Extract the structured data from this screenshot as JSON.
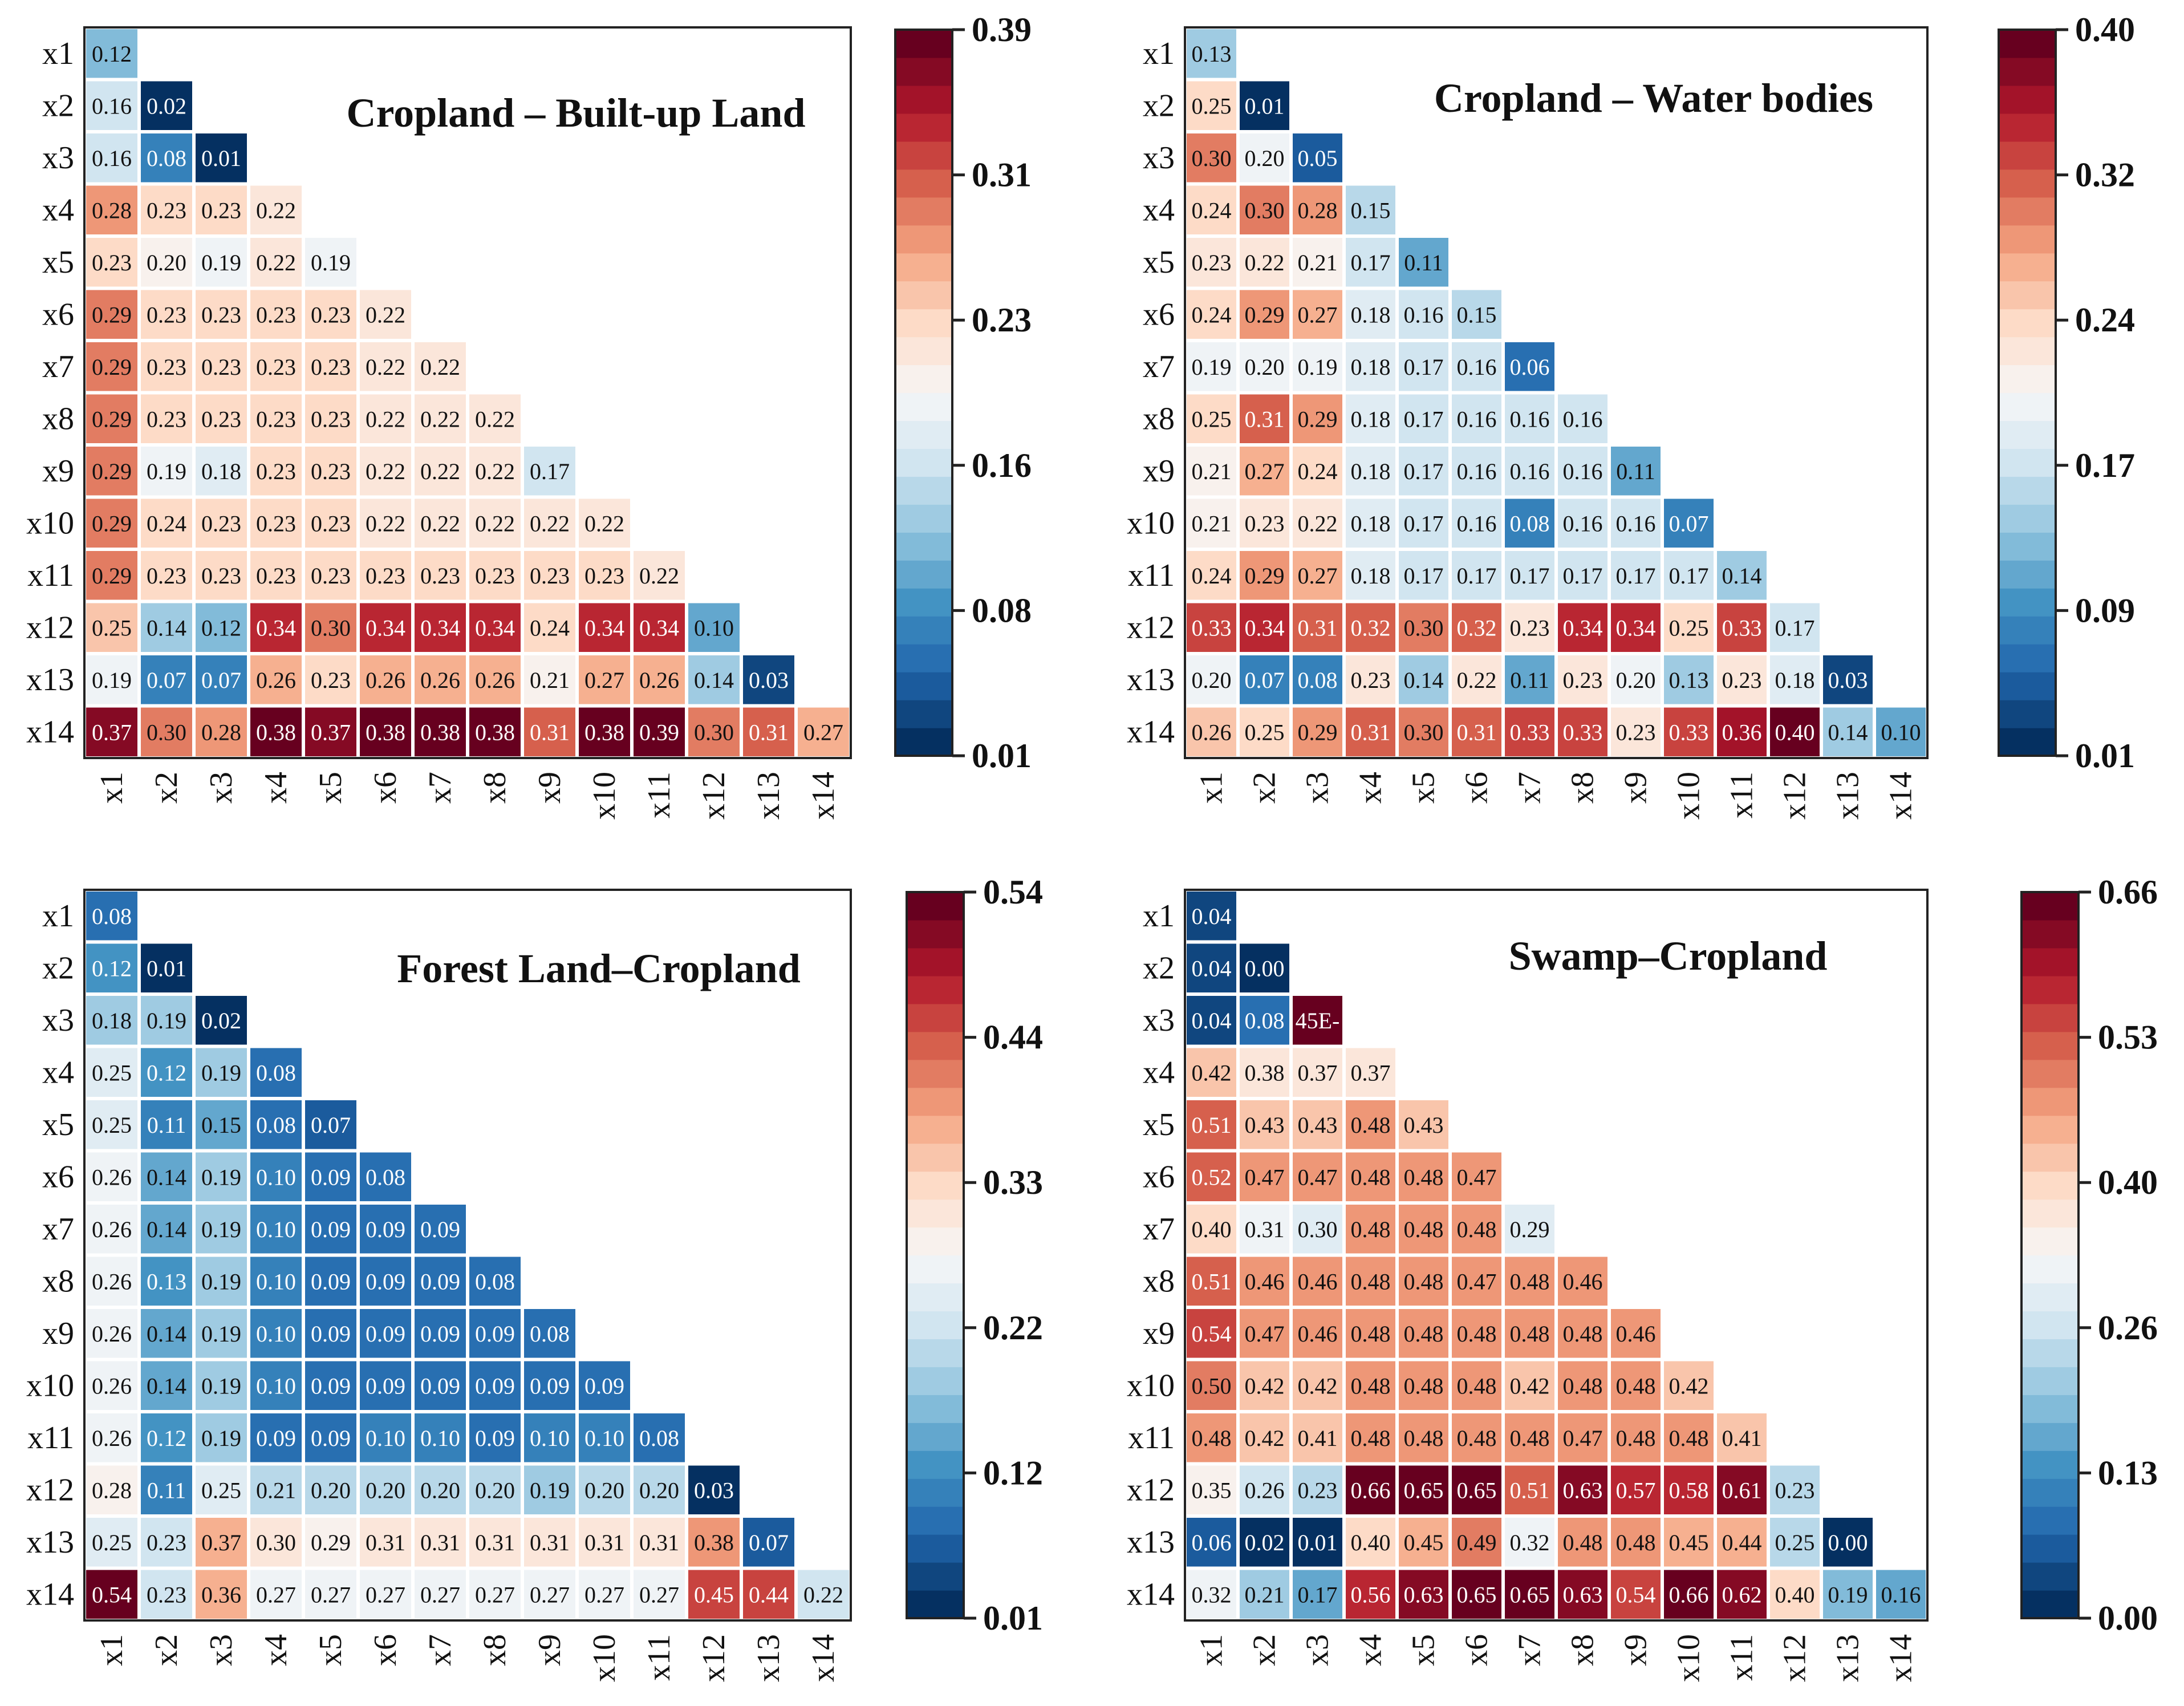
{
  "colors": {
    "scale": [
      "#053061",
      "#2166ac",
      "#4393c3",
      "#92c5de",
      "#d1e5f0",
      "#f7f7f7",
      "#fddbc7",
      "#f4a582",
      "#d6604d",
      "#b2182b",
      "#67001f"
    ]
  },
  "variables": [
    "x1",
    "x2",
    "x3",
    "x4",
    "x5",
    "x6",
    "x7",
    "x8",
    "x9",
    "x10",
    "x11",
    "x12",
    "x13",
    "x14"
  ],
  "chart_data": [
    {
      "type": "heatmap",
      "title": "Cropland – Built-up Land",
      "colorbar": {
        "min": 0.01,
        "max": 0.39,
        "ticks": [
          "0.01",
          "0.08",
          "0.16",
          "0.23",
          "0.31",
          "0.39"
        ]
      },
      "rows": [
        [
          "0.12"
        ],
        [
          "0.16",
          "0.02"
        ],
        [
          "0.16",
          "0.08",
          "0.01"
        ],
        [
          "0.28",
          "0.23",
          "0.23",
          "0.22"
        ],
        [
          "0.23",
          "0.20",
          "0.19",
          "0.22",
          "0.19"
        ],
        [
          "0.29",
          "0.23",
          "0.23",
          "0.23",
          "0.23",
          "0.22"
        ],
        [
          "0.29",
          "0.23",
          "0.23",
          "0.23",
          "0.23",
          "0.22",
          "0.22"
        ],
        [
          "0.29",
          "0.23",
          "0.23",
          "0.23",
          "0.23",
          "0.22",
          "0.22",
          "0.22"
        ],
        [
          "0.29",
          "0.19",
          "0.18",
          "0.23",
          "0.23",
          "0.22",
          "0.22",
          "0.22",
          "0.17"
        ],
        [
          "0.29",
          "0.24",
          "0.23",
          "0.23",
          "0.23",
          "0.22",
          "0.22",
          "0.22",
          "0.22",
          "0.22"
        ],
        [
          "0.29",
          "0.23",
          "0.23",
          "0.23",
          "0.23",
          "0.23",
          "0.23",
          "0.23",
          "0.23",
          "0.23",
          "0.22"
        ],
        [
          "0.25",
          "0.14",
          "0.12",
          "0.34",
          "0.30",
          "0.34",
          "0.34",
          "0.34",
          "0.24",
          "0.34",
          "0.34",
          "0.10"
        ],
        [
          "0.19",
          "0.07",
          "0.07",
          "0.26",
          "0.23",
          "0.26",
          "0.26",
          "0.26",
          "0.21",
          "0.27",
          "0.26",
          "0.14",
          "0.03"
        ],
        [
          "0.37",
          "0.30",
          "0.28",
          "0.38",
          "0.37",
          "0.38",
          "0.38",
          "0.38",
          "0.31",
          "0.38",
          "0.39",
          "0.30",
          "0.31",
          "0.27"
        ]
      ]
    },
    {
      "type": "heatmap",
      "title": "Cropland – Water bodies",
      "colorbar": {
        "min": 0.01,
        "max": 0.4,
        "ticks": [
          "0.01",
          "0.09",
          "0.17",
          "0.24",
          "0.32",
          "0.40"
        ]
      },
      "rows": [
        [
          "0.13"
        ],
        [
          "0.25",
          "0.01"
        ],
        [
          "0.30",
          "0.20",
          "0.05"
        ],
        [
          "0.24",
          "0.30",
          "0.28",
          "0.15"
        ],
        [
          "0.23",
          "0.22",
          "0.21",
          "0.17",
          "0.11"
        ],
        [
          "0.24",
          "0.29",
          "0.27",
          "0.18",
          "0.16",
          "0.15"
        ],
        [
          "0.19",
          "0.20",
          "0.19",
          "0.18",
          "0.17",
          "0.16",
          "0.06"
        ],
        [
          "0.25",
          "0.31",
          "0.29",
          "0.18",
          "0.17",
          "0.16",
          "0.16",
          "0.16"
        ],
        [
          "0.21",
          "0.27",
          "0.24",
          "0.18",
          "0.17",
          "0.16",
          "0.16",
          "0.16",
          "0.11"
        ],
        [
          "0.21",
          "0.23",
          "0.22",
          "0.18",
          "0.17",
          "0.16",
          "0.08",
          "0.16",
          "0.16",
          "0.07"
        ],
        [
          "0.24",
          "0.29",
          "0.27",
          "0.18",
          "0.17",
          "0.17",
          "0.17",
          "0.17",
          "0.17",
          "0.17",
          "0.14"
        ],
        [
          "0.33",
          "0.34",
          "0.31",
          "0.32",
          "0.30",
          "0.32",
          "0.23",
          "0.34",
          "0.34",
          "0.25",
          "0.33",
          "0.17"
        ],
        [
          "0.20",
          "0.07",
          "0.08",
          "0.23",
          "0.14",
          "0.22",
          "0.11",
          "0.23",
          "0.20",
          "0.13",
          "0.23",
          "0.18",
          "0.03"
        ],
        [
          "0.26",
          "0.25",
          "0.29",
          "0.31",
          "0.30",
          "0.31",
          "0.33",
          "0.33",
          "0.23",
          "0.33",
          "0.36",
          "0.40",
          "0.14",
          "0.10"
        ]
      ]
    },
    {
      "type": "heatmap",
      "title": "Forest Land–Cropland",
      "colorbar": {
        "min": 0.01,
        "max": 0.54,
        "ticks": [
          "0.01",
          "0.12",
          "0.22",
          "0.33",
          "0.44",
          "0.54"
        ]
      },
      "rows": [
        [
          "0.08"
        ],
        [
          "0.12",
          "0.01"
        ],
        [
          "0.18",
          "0.19",
          "0.02"
        ],
        [
          "0.25",
          "0.12",
          "0.19",
          "0.08"
        ],
        [
          "0.25",
          "0.11",
          "0.15",
          "0.08",
          "0.07"
        ],
        [
          "0.26",
          "0.14",
          "0.19",
          "0.10",
          "0.09",
          "0.08"
        ],
        [
          "0.26",
          "0.14",
          "0.19",
          "0.10",
          "0.09",
          "0.09",
          "0.09"
        ],
        [
          "0.26",
          "0.13",
          "0.19",
          "0.10",
          "0.09",
          "0.09",
          "0.09",
          "0.08"
        ],
        [
          "0.26",
          "0.14",
          "0.19",
          "0.10",
          "0.09",
          "0.09",
          "0.09",
          "0.09",
          "0.08"
        ],
        [
          "0.26",
          "0.14",
          "0.19",
          "0.10",
          "0.09",
          "0.09",
          "0.09",
          "0.09",
          "0.09",
          "0.09"
        ],
        [
          "0.26",
          "0.12",
          "0.19",
          "0.09",
          "0.09",
          "0.10",
          "0.10",
          "0.09",
          "0.10",
          "0.10",
          "0.08"
        ],
        [
          "0.28",
          "0.11",
          "0.25",
          "0.21",
          "0.20",
          "0.20",
          "0.20",
          "0.20",
          "0.19",
          "0.20",
          "0.20",
          "0.03"
        ],
        [
          "0.25",
          "0.23",
          "0.37",
          "0.30",
          "0.29",
          "0.31",
          "0.31",
          "0.31",
          "0.31",
          "0.31",
          "0.31",
          "0.38",
          "0.07"
        ],
        [
          "0.54",
          "0.23",
          "0.36",
          "0.27",
          "0.27",
          "0.27",
          "0.27",
          "0.27",
          "0.27",
          "0.27",
          "0.27",
          "0.45",
          "0.44",
          "0.22"
        ]
      ]
    },
    {
      "type": "heatmap",
      "title": "Swamp–Cropland",
      "colorbar": {
        "min": 0.0,
        "max": 0.66,
        "ticks": [
          "0.00",
          "0.13",
          "0.26",
          "0.40",
          "0.53",
          "0.66"
        ]
      },
      "rows": [
        [
          "0.04"
        ],
        [
          "0.04",
          "0.00"
        ],
        [
          "0.04",
          "0.08",
          "45E-"
        ],
        [
          "0.42",
          "0.38",
          "0.37",
          "0.37"
        ],
        [
          "0.51",
          "0.43",
          "0.43",
          "0.48",
          "0.43"
        ],
        [
          "0.52",
          "0.47",
          "0.47",
          "0.48",
          "0.48",
          "0.47"
        ],
        [
          "0.40",
          "0.31",
          "0.30",
          "0.48",
          "0.48",
          "0.48",
          "0.29"
        ],
        [
          "0.51",
          "0.46",
          "0.46",
          "0.48",
          "0.48",
          "0.47",
          "0.48",
          "0.46"
        ],
        [
          "0.54",
          "0.47",
          "0.46",
          "0.48",
          "0.48",
          "0.48",
          "0.48",
          "0.48",
          "0.46"
        ],
        [
          "0.50",
          "0.42",
          "0.42",
          "0.48",
          "0.48",
          "0.48",
          "0.42",
          "0.48",
          "0.48",
          "0.42"
        ],
        [
          "0.48",
          "0.42",
          "0.41",
          "0.48",
          "0.48",
          "0.48",
          "0.48",
          "0.47",
          "0.48",
          "0.48",
          "0.41"
        ],
        [
          "0.35",
          "0.26",
          "0.23",
          "0.66",
          "0.65",
          "0.65",
          "0.51",
          "0.63",
          "0.57",
          "0.58",
          "0.61",
          "0.23"
        ],
        [
          "0.06",
          "0.02",
          "0.01",
          "0.40",
          "0.45",
          "0.49",
          "0.32",
          "0.48",
          "0.48",
          "0.45",
          "0.44",
          "0.25",
          "0.00"
        ],
        [
          "0.32",
          "0.21",
          "0.17",
          "0.56",
          "0.63",
          "0.65",
          "0.65",
          "0.63",
          "0.54",
          "0.66",
          "0.62",
          "0.40",
          "0.19",
          "0.16"
        ]
      ]
    }
  ]
}
